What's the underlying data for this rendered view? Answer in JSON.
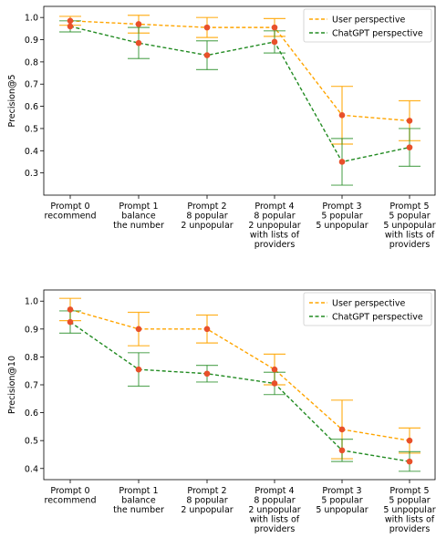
{
  "chart_data": [
    {
      "type": "line",
      "ylabel": "Precision@5",
      "ylim": [
        0.2,
        1.05
      ],
      "yticks": [
        "0.3",
        "0.4",
        "0.5",
        "0.6",
        "0.7",
        "0.8",
        "0.9",
        "1.0"
      ],
      "categories": [
        [
          "Prompt 0",
          "recommend"
        ],
        [
          "Prompt 1",
          "balance",
          "the number"
        ],
        [
          "Prompt 2",
          "8 popular",
          "2 unpopular"
        ],
        [
          "Prompt 4",
          "8 popular",
          "2 unpopular",
          "with lists of",
          "providers"
        ],
        [
          "Prompt 3",
          "5 popular",
          "5 unpopular"
        ],
        [
          "Prompt 5",
          "5 popular",
          "5 unpopular",
          "with lists of",
          "providers"
        ]
      ],
      "legend_position": "top-right",
      "grid": false,
      "series": [
        {
          "name": "User perspective",
          "color": "#ffa500",
          "values": [
            0.985,
            0.97,
            0.955,
            0.955,
            0.56,
            0.535
          ],
          "errors": [
            0.02,
            0.04,
            0.045,
            0.04,
            0.13,
            0.09
          ]
        },
        {
          "name": "ChatGPT perspective",
          "color": "#228b22",
          "values": [
            0.96,
            0.885,
            0.83,
            0.89,
            0.35,
            0.415
          ],
          "errors": [
            0.025,
            0.07,
            0.065,
            0.05,
            0.105,
            0.085
          ]
        }
      ]
    },
    {
      "type": "line",
      "ylabel": "Precision@10",
      "ylim": [
        0.36,
        1.04
      ],
      "yticks": [
        "0.4",
        "0.5",
        "0.6",
        "0.7",
        "0.8",
        "0.9",
        "1.0"
      ],
      "categories": [
        [
          "Prompt 0",
          "recommend"
        ],
        [
          "Prompt 1",
          "balance",
          "the number"
        ],
        [
          "Prompt 2",
          "8 popular",
          "2 unpopular"
        ],
        [
          "Prompt 4",
          "8 popular",
          "2 unpopular",
          "with lists of",
          "providers"
        ],
        [
          "Prompt 3",
          "5 popular",
          "5 unpopular"
        ],
        [
          "Prompt 5",
          "5 popular",
          "5 unpopular",
          "with lists of",
          "providers"
        ]
      ],
      "legend_position": "top-right",
      "grid": false,
      "series": [
        {
          "name": "User perspective",
          "color": "#ffa500",
          "values": [
            0.97,
            0.9,
            0.9,
            0.755,
            0.54,
            0.5
          ],
          "errors": [
            0.04,
            0.06,
            0.05,
            0.055,
            0.105,
            0.045
          ]
        },
        {
          "name": "ChatGPT perspective",
          "color": "#228b22",
          "values": [
            0.925,
            0.755,
            0.74,
            0.705,
            0.465,
            0.425
          ],
          "errors": [
            0.04,
            0.06,
            0.03,
            0.04,
            0.04,
            0.035
          ]
        }
      ]
    }
  ]
}
